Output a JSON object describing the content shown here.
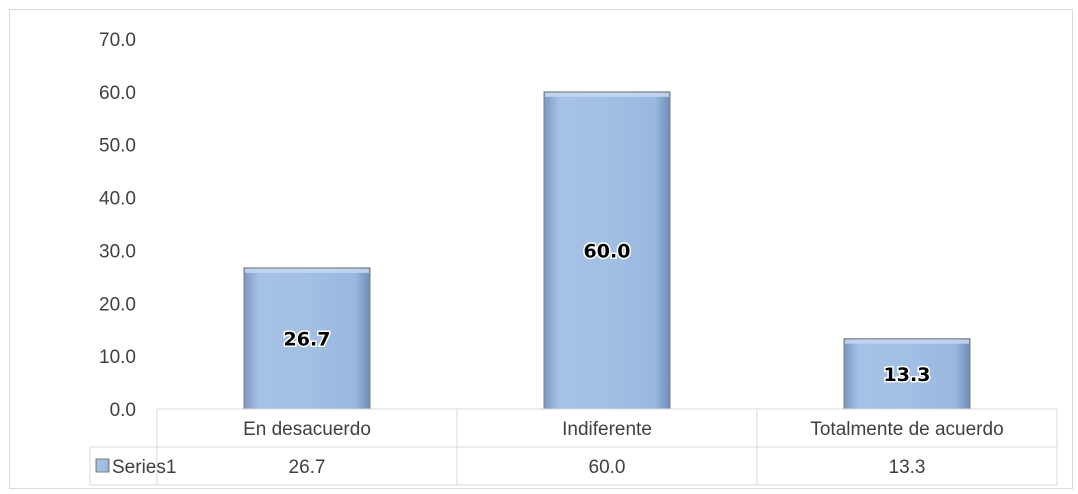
{
  "chart_data": {
    "type": "bar",
    "categories": [
      "En desacuerdo",
      "Indiferente",
      "Totalmente de acuerdo"
    ],
    "series": [
      {
        "name": "Series1",
        "values": [
          26.7,
          60.0,
          13.3
        ]
      }
    ],
    "data_labels": [
      "26.7",
      "60.0",
      "13.3"
    ],
    "ylim": [
      0,
      70
    ],
    "yticks": [
      "0.0",
      "10.0",
      "20.0",
      "30.0",
      "40.0",
      "50.0",
      "60.0",
      "70.0"
    ],
    "grid": false,
    "legend": "data-table-left",
    "data_table": {
      "series_label": "Series1",
      "values": [
        "26.7",
        "60.0",
        "13.3"
      ]
    },
    "title": "",
    "xlabel": "",
    "ylabel": "",
    "colors": {
      "bar_fill": "#9dbbe0",
      "bar_border": "#7f7f7f",
      "bar_highlight": "#c3d6ee",
      "bar_shadow": "#7996c0",
      "axis": "#d9d9d9",
      "text": "#404040"
    }
  }
}
